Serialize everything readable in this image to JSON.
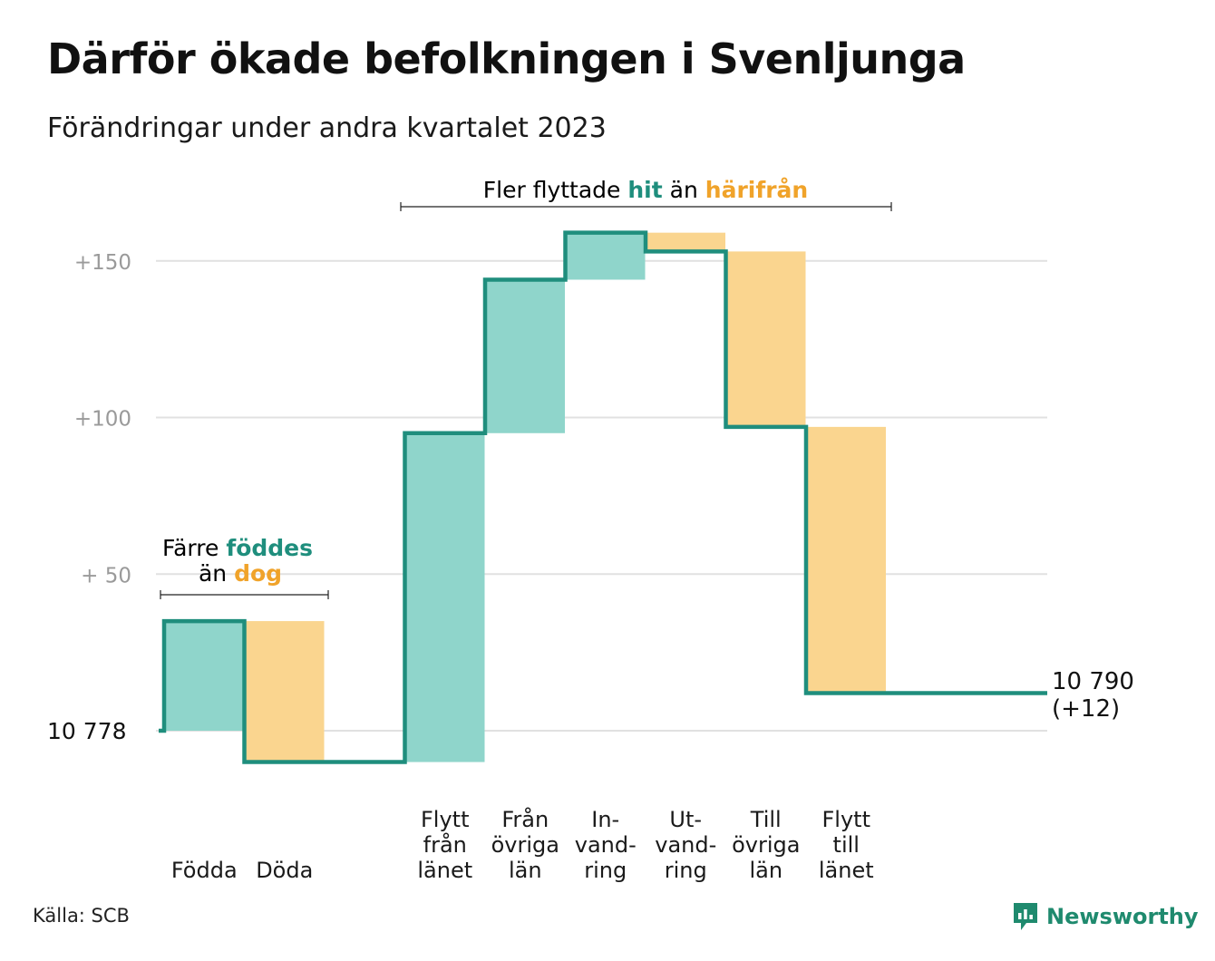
{
  "title": "Därför ökade befolkningen i Svenljunga",
  "subtitle": "Förändringar under andra kvartalet 2023",
  "source": "Källa: SCB",
  "logo": {
    "name": "Newsworthy",
    "icon": "bar-chart-speech-bubble-icon"
  },
  "colors": {
    "increase": "#8fd5cb",
    "decrease": "#fad58f",
    "line": "#1f8e7d",
    "grid": "#e1e1e1",
    "hit_text": "#1f8e7d",
    "harifran_text": "#f0a32a"
  },
  "annotations": {
    "natural": {
      "line1_a": "Färre",
      "line1_b": "föddes",
      "line2_a": "än",
      "line2_b": "dog"
    },
    "migration": {
      "a": "Fler flyttade",
      "b": "hit",
      "c": "än",
      "d": "härifrån"
    }
  },
  "chart_data": {
    "type": "waterfall",
    "title": "Därför ökade befolkningen i Svenljunga",
    "subtitle": "Förändringar under andra kvartalet 2023",
    "start_value": 10778,
    "start_label": "10  778",
    "end_value": 10790,
    "end_label_line1": "10 790",
    "end_label_line2": "(+12)",
    "y_ticks": [
      {
        "value": 150,
        "label": "+150"
      },
      {
        "value": 100,
        "label": "+100"
      },
      {
        "value": 50,
        "label": "+  50"
      }
    ],
    "ylim": [
      -10,
      160
    ],
    "grid": true,
    "steps": [
      {
        "label_lines": [
          "Födda"
        ],
        "change": 35
      },
      {
        "label_lines": [
          "Döda"
        ],
        "change": -45
      },
      {
        "label_lines": [
          ""
        ],
        "change": 0
      },
      {
        "label_lines": [
          "Flytt",
          "från",
          "länet"
        ],
        "change": 105
      },
      {
        "label_lines": [
          "Från",
          "övriga",
          "län"
        ],
        "change": 49
      },
      {
        "label_lines": [
          "In-",
          "vand-",
          "ring"
        ],
        "change": 15
      },
      {
        "label_lines": [
          "Ut-",
          "vand-",
          "ring"
        ],
        "change": -6
      },
      {
        "label_lines": [
          "Till",
          "övriga",
          "län"
        ],
        "change": -56
      },
      {
        "label_lines": [
          "Flytt",
          "till",
          "länet"
        ],
        "change": -85
      }
    ]
  }
}
